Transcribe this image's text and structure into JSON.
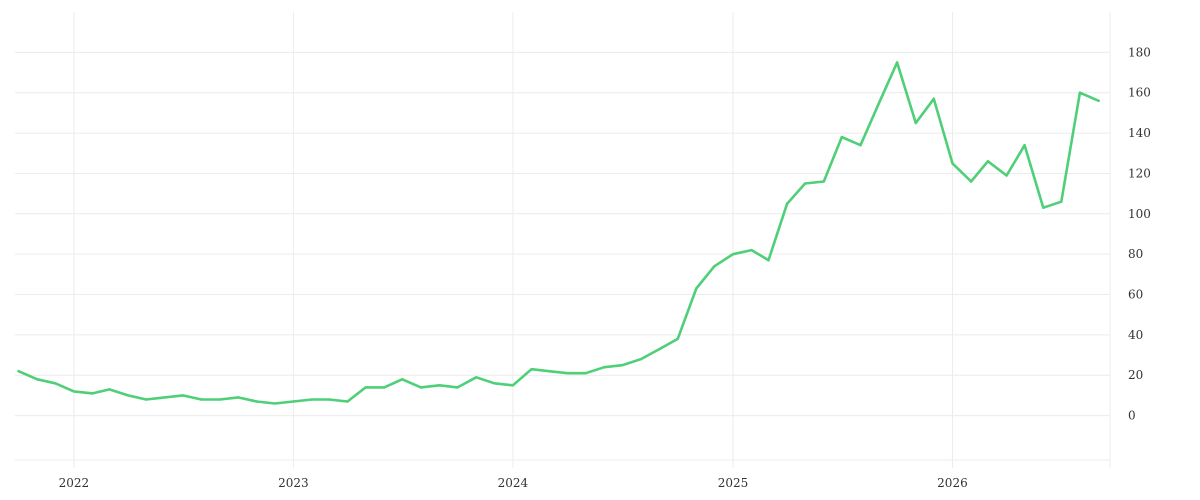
{
  "chart_data": {
    "type": "line",
    "title": "",
    "xlabel": "",
    "ylabel": "",
    "x_range": [
      "2021-09-25",
      "2026-09-20"
    ],
    "x_ticks": [
      {
        "date": "2022-01-01",
        "label": "2022"
      },
      {
        "date": "2023-01-01",
        "label": "2023"
      },
      {
        "date": "2024-01-01",
        "label": "2024"
      },
      {
        "date": "2025-01-01",
        "label": "2025"
      },
      {
        "date": "2026-01-01",
        "label": "2026"
      }
    ],
    "ylim": [
      -22,
      200
    ],
    "y_ticks": [
      0,
      20,
      40,
      60,
      80,
      100,
      120,
      140,
      160,
      180
    ],
    "y_axis_position": "right",
    "grid": true,
    "legend": "none",
    "line_color": "#4ecf78",
    "series": [
      {
        "x": [
          "2021-10-01",
          "2021-11-01",
          "2021-12-01",
          "2022-01-01",
          "2022-02-01",
          "2022-03-01",
          "2022-04-01",
          "2022-05-01",
          "2022-06-01",
          "2022-07-01",
          "2022-08-01",
          "2022-09-01",
          "2022-10-01",
          "2022-11-01",
          "2022-12-01",
          "2023-01-01",
          "2023-02-01",
          "2023-03-01",
          "2023-04-01",
          "2023-05-01",
          "2023-06-01",
          "2023-07-01",
          "2023-08-01",
          "2023-09-01",
          "2023-10-01",
          "2023-11-01",
          "2023-12-01",
          "2024-01-01",
          "2024-02-01",
          "2024-03-01",
          "2024-04-01",
          "2024-05-01",
          "2024-06-01",
          "2024-07-01",
          "2024-08-01",
          "2024-09-01",
          "2024-10-01",
          "2024-11-01",
          "2024-12-01",
          "2025-01-01",
          "2025-02-01",
          "2025-03-01",
          "2025-04-01",
          "2025-05-01",
          "2025-06-01",
          "2025-07-01",
          "2025-08-01",
          "2025-09-01",
          "2025-10-01",
          "2025-11-01",
          "2025-12-01",
          "2026-01-01",
          "2026-02-01",
          "2026-03-01",
          "2026-04-01",
          "2026-05-01",
          "2026-06-01",
          "2026-07-01",
          "2026-08-01",
          "2026-09-01"
        ],
        "values": [
          22,
          18,
          16,
          12,
          11,
          13,
          10,
          8,
          9,
          10,
          8,
          8,
          9,
          7,
          6,
          7,
          8,
          8,
          7,
          14,
          14,
          18,
          14,
          15,
          14,
          19,
          16,
          15,
          23,
          22,
          21,
          21,
          24,
          25,
          28,
          33,
          38,
          63,
          74,
          80,
          82,
          77,
          105,
          115,
          116,
          138,
          134,
          155,
          175,
          145,
          157,
          125,
          116,
          126,
          119,
          134,
          103,
          106,
          160,
          156
        ]
      }
    ]
  }
}
